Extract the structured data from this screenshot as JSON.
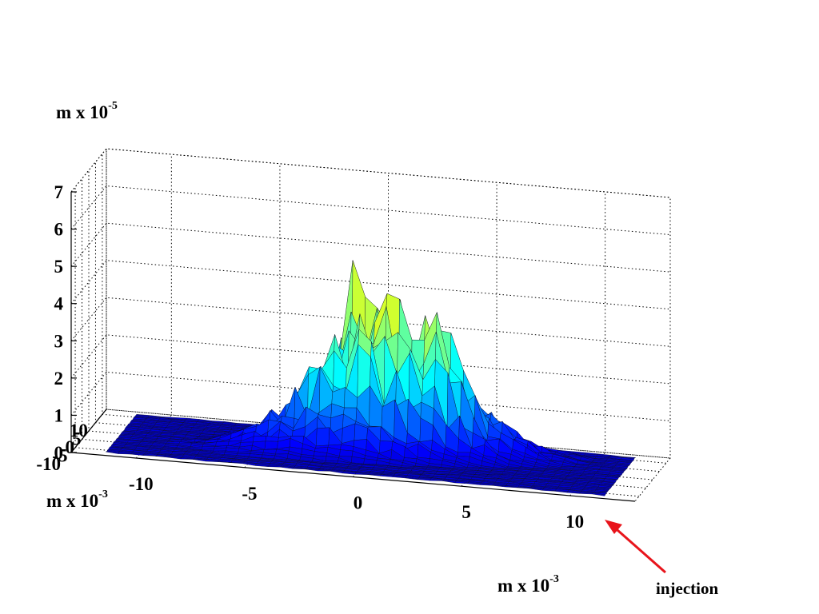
{
  "chart_data": {
    "type": "surface3d",
    "title": "",
    "zlabel": {
      "base": "m x 10",
      "exponent": "-5"
    },
    "xlabel": {
      "base": "m x 10",
      "exponent": "-3"
    },
    "ylabel": {
      "base": "m x 10",
      "exponent": "-3"
    },
    "zticks": [
      "0",
      "1",
      "2",
      "3",
      "4",
      "5",
      "6",
      "7"
    ],
    "zlim": [
      0,
      7
    ],
    "xticks": [
      "-10",
      "-5",
      "0",
      "5",
      "10"
    ],
    "xlim": [
      -13,
      13
    ],
    "yticks": [
      "-10",
      "-5",
      "0",
      "5",
      "10"
    ],
    "ylim": [
      -13,
      13
    ],
    "grid": true,
    "colormap": "jet",
    "peaks": [
      {
        "x": -1.0,
        "y": 5.5,
        "z": 5.6
      },
      {
        "x": 3.0,
        "y": 3.0,
        "z": 3.9
      }
    ]
  },
  "annotation": {
    "text": "injection",
    "arrow_color": "#e8141b"
  }
}
